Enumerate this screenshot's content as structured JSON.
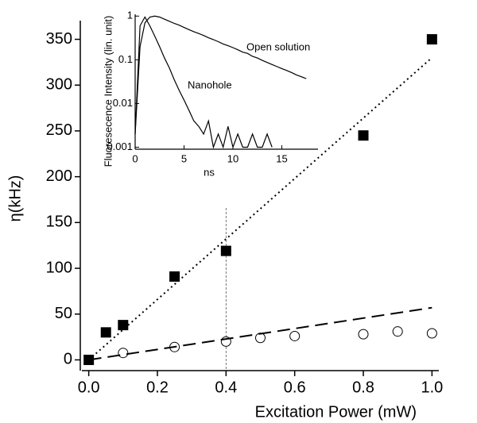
{
  "chart_data": [
    {
      "type": "scatter",
      "xlabel": "Excitation Power (mW)",
      "ylabel": "η(kHz)",
      "xlim": [
        -0.02,
        1.02
      ],
      "ylim": [
        -10,
        360
      ],
      "xticks": [
        {
          "value": 0,
          "label": "0.0"
        },
        0.2,
        0.4,
        0.6,
        0.8,
        {
          "value": 1,
          "label": "1.0"
        }
      ],
      "yticks": [
        0,
        50,
        100,
        150,
        200,
        250,
        300,
        350
      ],
      "vline_x": 0.4,
      "series": [
        {
          "style": "marker",
          "marker": "square",
          "color": "#000000",
          "x": [
            0,
            0.05,
            0.1,
            0.25,
            0.4,
            0.8,
            1.0
          ],
          "values": [
            0,
            30,
            38,
            91,
            119,
            245,
            350
          ]
        },
        {
          "style": "marker",
          "marker": "circle",
          "color": "#000000",
          "x": [
            0.1,
            0.25,
            0.4,
            0.5,
            0.6,
            0.8,
            0.9,
            1.0
          ],
          "values": [
            7.6,
            14,
            20,
            24,
            26,
            28,
            31,
            29
          ]
        },
        {
          "style": "line",
          "dash": "2,4",
          "color": "#000000",
          "x": [
            0,
            1
          ],
          "values": [
            0,
            330
          ]
        },
        {
          "style": "line",
          "dash": "16,8",
          "color": "#000000",
          "x": [
            0,
            1
          ],
          "values": [
            0,
            57
          ]
        }
      ]
    },
    {
      "type": "line",
      "log_y": true,
      "xlabel": "ns",
      "ylabel": "Fluoresecence Intensity (lin. unit)",
      "xlim": [
        0,
        18.7
      ],
      "ylim": [
        0.0009,
        1.1
      ],
      "xticks": [
        0,
        5,
        10,
        15
      ],
      "yticks": [
        0.001,
        0.01,
        0.1,
        1
      ],
      "x": [
        0,
        0.5,
        1,
        1.5,
        2,
        2.5,
        3,
        3.5,
        4,
        4.5,
        5,
        5.5,
        6,
        6.5,
        7,
        7.5,
        8,
        8.5,
        9,
        9.5,
        10,
        10.5,
        11,
        11.5,
        12,
        12.5,
        13,
        13.5,
        14,
        14.5,
        15,
        15.5,
        16,
        16.5,
        17,
        17.5
      ],
      "series": [
        {
          "color": "#000000",
          "values": [
            0.002,
            0.2,
            0.7,
            0.95,
            1,
            0.95,
            0.85,
            0.76,
            0.68,
            0.62,
            0.55,
            0.49,
            0.44,
            0.4,
            0.36,
            0.32,
            0.29,
            0.26,
            0.23,
            0.21,
            0.19,
            0.17,
            0.15,
            0.14,
            0.12,
            0.11,
            0.097,
            0.087,
            0.078,
            0.07,
            0.063,
            0.057,
            0.051,
            0.045,
            0.041,
            0.037
          ]
        },
        {
          "color": "#000000",
          "values": [
            0.002,
            0.6,
            0.95,
            0.6,
            0.35,
            0.2,
            0.11,
            0.065,
            0.035,
            0.02,
            0.012,
            0.007,
            0.004,
            0.003,
            0.002,
            0.004,
            0.001,
            0.002,
            0.001,
            0.003,
            0.001,
            0.002,
            0.001,
            0.001,
            0.002,
            0.001,
            0.001,
            0.002,
            0.001,
            null,
            null,
            null,
            null,
            null,
            null,
            null
          ]
        }
      ],
      "annotations": [
        "Open solution",
        "Nanohole"
      ]
    }
  ]
}
